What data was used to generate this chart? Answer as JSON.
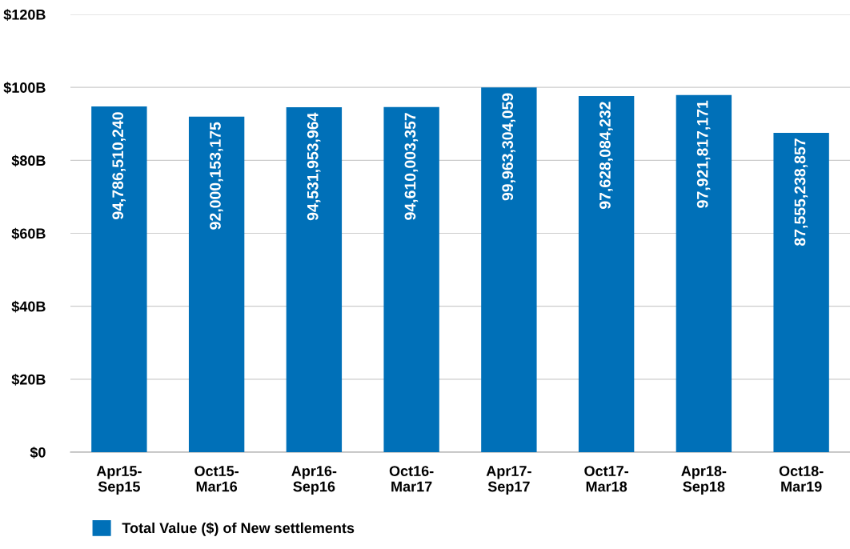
{
  "chart_data": {
    "type": "bar",
    "categories": [
      "Apr15-\nSep15",
      "Oct15-\nMar16",
      "Apr16-\nSep16",
      "Oct16-\nMar17",
      "Apr17-\nSep17",
      "Oct17-\nMar18",
      "Apr18-\nSep18",
      "Oct18-\nMar19"
    ],
    "series": [
      {
        "name": "Total Value ($) of New settlements",
        "color": "#0070b8",
        "values": [
          94786510240,
          92000153175,
          94531953964,
          94610003357,
          99963304059,
          97628084232,
          97921817171,
          87555238857
        ],
        "value_labels": [
          "94,786,510,240",
          "92,000,153,175",
          "94,531,953,964",
          "94,610,003,357",
          "99,963,304,059",
          "97,628,084,232",
          "97,921,817,171",
          "87,555,238,857"
        ]
      }
    ],
    "ylim": [
      0,
      120000000000
    ],
    "yticks": [
      {
        "value": 0,
        "label": "$0"
      },
      {
        "value": 20000000000,
        "label": "$20B"
      },
      {
        "value": 40000000000,
        "label": "$40B"
      },
      {
        "value": 60000000000,
        "label": "$60B"
      },
      {
        "value": 80000000000,
        "label": "$80B"
      },
      {
        "value": 100000000000,
        "label": "$100B"
      },
      {
        "value": 120000000000,
        "label": "$120B"
      }
    ],
    "grid": "y",
    "legend": "bottom"
  }
}
